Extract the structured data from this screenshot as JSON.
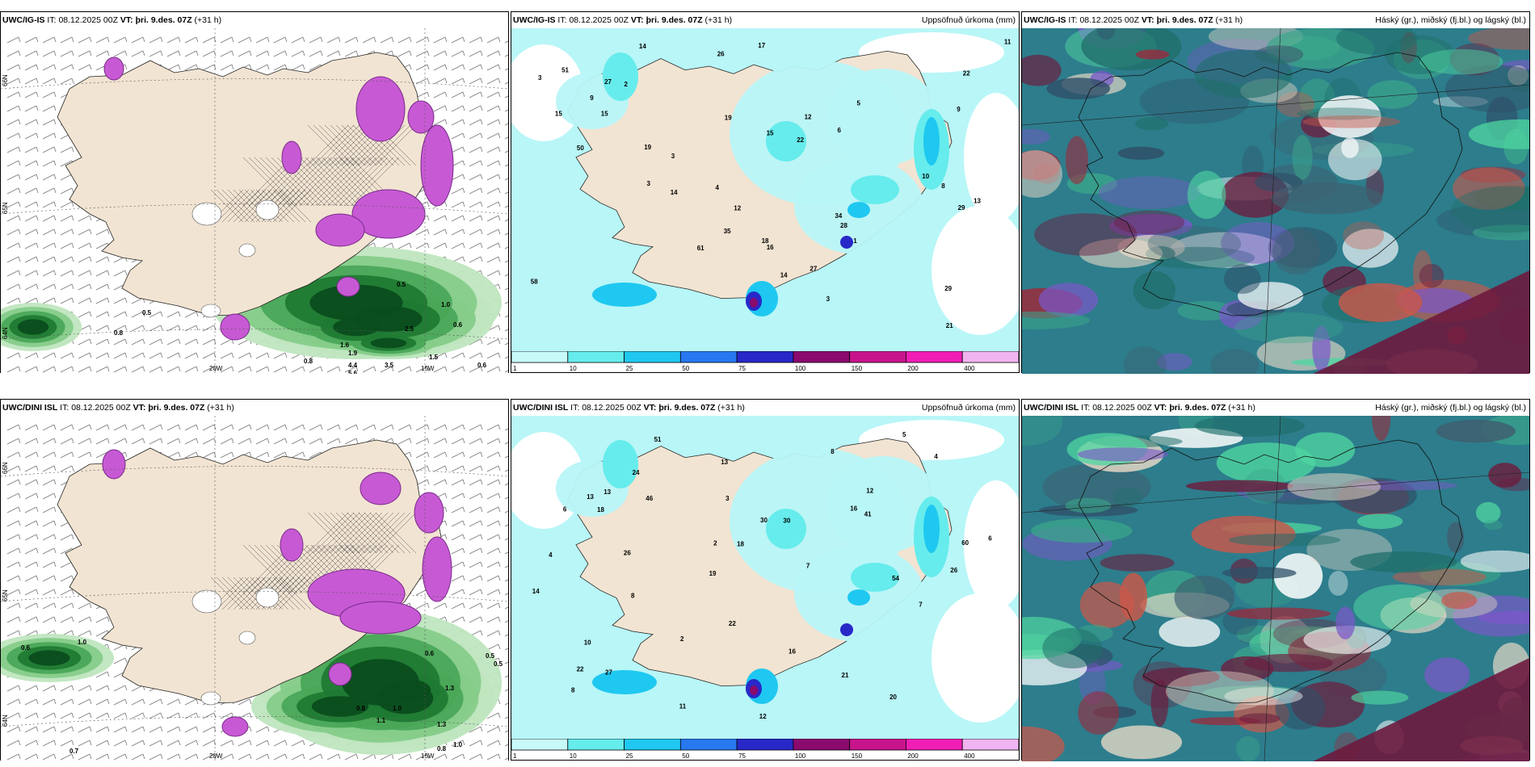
{
  "rows": [
    {
      "model": "UWC/IG-IS",
      "it_label": "IT:",
      "it_value": "08.12.2025 00Z",
      "vt_label": "VT:",
      "vt_value": "þri. 9.des. 07Z",
      "lead": "(+31 h)",
      "wind_values": [
        "0.5",
        "0.8",
        "0.5",
        "1.0",
        "0.6",
        "1.6",
        "1.9",
        "2.5",
        "4.4",
        "5.6",
        "3.5",
        "0.8",
        "1.5",
        "0.6"
      ],
      "precip_values": [
        "9",
        "17",
        "12",
        "22",
        "4",
        "3",
        "1",
        "14",
        "26",
        "13",
        "21",
        "19",
        "28",
        "15",
        "27",
        "22",
        "8",
        "12",
        "29",
        "11",
        "14",
        "27",
        "58",
        "34",
        "10",
        "61",
        "50",
        "51",
        "19",
        "2",
        "9",
        "18",
        "16",
        "29",
        "35",
        "15",
        "14",
        "15",
        "5",
        "6",
        "3",
        "3",
        "3"
      ],
      "lon_labels": [
        "20W",
        "15W"
      ],
      "lat_labels": [
        "66N",
        "65N",
        "64N"
      ]
    },
    {
      "model": "UWC/DINI ISL",
      "it_label": "IT:",
      "it_value": "08.12.2025 00Z",
      "vt_label": "VT:",
      "vt_value": "þri. 9.des. 07Z",
      "lead": "(+31 h)",
      "wind_values": [
        "1.0",
        "0.6",
        "0.7",
        "0.6",
        "0.8",
        "1.0",
        "1.1",
        "1.3",
        "0.8",
        "1.0",
        "1.3",
        "0.5",
        "0.5"
      ],
      "precip_values": [
        "8",
        "18",
        "16",
        "22",
        "4",
        "2",
        "3",
        "21",
        "26",
        "14",
        "16",
        "30",
        "27",
        "22",
        "12",
        "13",
        "18",
        "30",
        "20",
        "51",
        "19",
        "60",
        "41",
        "46",
        "54",
        "24",
        "26",
        "13",
        "7",
        "5",
        "6",
        "6",
        "8",
        "7",
        "13",
        "12",
        "10",
        "11",
        "4",
        "8",
        "2"
      ],
      "lon_labels": [
        "20W",
        "15W"
      ],
      "lat_labels": [
        "66N",
        "65N",
        "64N"
      ]
    }
  ],
  "precip_title": "Uppsöfnuð úrkoma (mm)",
  "cloud_title": "Háský (gr.), miðský (fj.bl.) og lágský (bl.)",
  "legend": {
    "ticks": [
      "1",
      "10",
      "25",
      "50",
      "75",
      "100",
      "150",
      "200",
      "400"
    ],
    "colors": [
      "#c8fafa",
      "#66ecec",
      "#1fc8f0",
      "#2878f0",
      "#2828c8",
      "#8a0a6e",
      "#c8148c",
      "#f01eb4",
      "#f0b4f0"
    ]
  },
  "colors": {
    "land": "#f2e4d2",
    "sea": "#ffffff",
    "precip_light": "#b8f6f8",
    "wind_green": "#2c8c3c",
    "snow_purple": "#c75ad4",
    "cloud_sea": "#2d7d8c"
  }
}
